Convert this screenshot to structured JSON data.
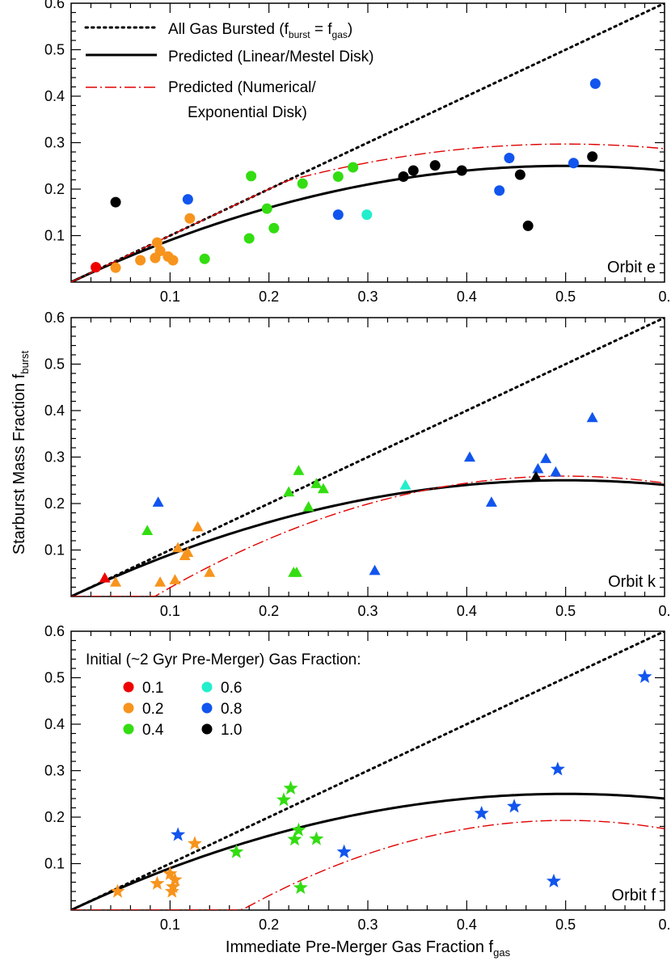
{
  "figure": {
    "ylabel": "Starburst Mass Fraction f",
    "ylabel_sub": "burst",
    "xlabel": "Immediate Pre-Merger Gas Fraction f",
    "xlabel_sub": "gas"
  },
  "legend_top": {
    "items": [
      {
        "label": "All Gas Bursted (f",
        "sub1": "burst",
        "mid": " = f",
        "sub2": "gas",
        "end": ")",
        "style": "dotted"
      },
      {
        "label": "Predicted (Linear/Mestel Disk)",
        "style": "solid"
      },
      {
        "label": "Predicted (Numerical/",
        "label2": "Exponential Disk)",
        "style": "dashdot"
      }
    ]
  },
  "legend_colors": {
    "title": "Initial (~2 Gyr Pre-Merger) Gas Fraction:",
    "items": [
      {
        "label": "0.1",
        "color": "#ee0000"
      },
      {
        "label": "0.2",
        "color": "#f7941d"
      },
      {
        "label": "0.4",
        "color": "#33dd11"
      },
      {
        "label": "0.6",
        "color": "#22eecc"
      },
      {
        "label": "0.8",
        "color": "#1155ee"
      },
      {
        "label": "1.0",
        "color": "#000000"
      }
    ]
  },
  "chart_data": [
    {
      "type": "scatter",
      "panel_label": "Orbit e",
      "marker": "circle",
      "xlim": [
        0,
        0.6
      ],
      "ylim": [
        0,
        0.6
      ],
      "xticks": [
        "0.1",
        "0.2",
        "0.3",
        "0.4",
        "0.5",
        "0."
      ],
      "yticks": [
        "0.1",
        "0.2",
        "0.3",
        "0.4",
        "0.5",
        "0.6"
      ],
      "numerical_peak": 0.297,
      "numerical_end": 0.287,
      "points": [
        {
          "x": 0.025,
          "y": 0.032,
          "g": "0.1"
        },
        {
          "x": 0.045,
          "y": 0.031,
          "g": "0.2"
        },
        {
          "x": 0.07,
          "y": 0.047,
          "g": "0.2"
        },
        {
          "x": 0.085,
          "y": 0.052,
          "g": "0.2"
        },
        {
          "x": 0.087,
          "y": 0.085,
          "g": "0.2"
        },
        {
          "x": 0.09,
          "y": 0.067,
          "g": "0.2"
        },
        {
          "x": 0.098,
          "y": 0.055,
          "g": "0.2"
        },
        {
          "x": 0.103,
          "y": 0.047,
          "g": "0.2"
        },
        {
          "x": 0.12,
          "y": 0.137,
          "g": "0.2"
        },
        {
          "x": 0.135,
          "y": 0.05,
          "g": "0.4"
        },
        {
          "x": 0.18,
          "y": 0.094,
          "g": "0.4"
        },
        {
          "x": 0.182,
          "y": 0.228,
          "g": "0.4"
        },
        {
          "x": 0.198,
          "y": 0.158,
          "g": "0.4"
        },
        {
          "x": 0.205,
          "y": 0.116,
          "g": "0.4"
        },
        {
          "x": 0.234,
          "y": 0.212,
          "g": "0.4"
        },
        {
          "x": 0.27,
          "y": 0.227,
          "g": "0.4"
        },
        {
          "x": 0.285,
          "y": 0.247,
          "g": "0.4"
        },
        {
          "x": 0.299,
          "y": 0.145,
          "g": "0.6"
        },
        {
          "x": 0.118,
          "y": 0.178,
          "g": "0.8"
        },
        {
          "x": 0.27,
          "y": 0.145,
          "g": "0.8"
        },
        {
          "x": 0.433,
          "y": 0.197,
          "g": "0.8"
        },
        {
          "x": 0.443,
          "y": 0.267,
          "g": "0.8"
        },
        {
          "x": 0.508,
          "y": 0.256,
          "g": "0.8"
        },
        {
          "x": 0.53,
          "y": 0.427,
          "g": "0.8"
        },
        {
          "x": 0.045,
          "y": 0.172,
          "g": "1.0"
        },
        {
          "x": 0.336,
          "y": 0.227,
          "g": "1.0"
        },
        {
          "x": 0.346,
          "y": 0.24,
          "g": "1.0"
        },
        {
          "x": 0.368,
          "y": 0.251,
          "g": "1.0"
        },
        {
          "x": 0.395,
          "y": 0.24,
          "g": "1.0"
        },
        {
          "x": 0.454,
          "y": 0.231,
          "g": "1.0"
        },
        {
          "x": 0.462,
          "y": 0.121,
          "g": "1.0"
        },
        {
          "x": 0.527,
          "y": 0.27,
          "g": "1.0"
        }
      ]
    },
    {
      "type": "scatter",
      "panel_label": "Orbit k",
      "marker": "triangle",
      "xlim": [
        0,
        0.6
      ],
      "ylim": [
        0,
        0.6
      ],
      "xticks": [
        "0.1",
        "0.2",
        "0.3",
        "0.4",
        "0.5",
        "0."
      ],
      "yticks": [
        "0.1",
        "0.2",
        "0.3",
        "0.4",
        "0.5",
        "0.6"
      ],
      "numerical_peak": 0.259,
      "numerical_end": 0.244,
      "points": [
        {
          "x": 0.034,
          "y": 0.04,
          "g": "0.1"
        },
        {
          "x": 0.045,
          "y": 0.031,
          "g": "0.2"
        },
        {
          "x": 0.09,
          "y": 0.031,
          "g": "0.2"
        },
        {
          "x": 0.105,
          "y": 0.036,
          "g": "0.2"
        },
        {
          "x": 0.108,
          "y": 0.105,
          "g": "0.2"
        },
        {
          "x": 0.115,
          "y": 0.088,
          "g": "0.2"
        },
        {
          "x": 0.118,
          "y": 0.095,
          "g": "0.2"
        },
        {
          "x": 0.128,
          "y": 0.15,
          "g": "0.2"
        },
        {
          "x": 0.14,
          "y": 0.052,
          "g": "0.2"
        },
        {
          "x": 0.077,
          "y": 0.142,
          "g": "0.4"
        },
        {
          "x": 0.22,
          "y": 0.225,
          "g": "0.4"
        },
        {
          "x": 0.225,
          "y": 0.052,
          "g": "0.4"
        },
        {
          "x": 0.228,
          "y": 0.052,
          "g": "0.4"
        },
        {
          "x": 0.23,
          "y": 0.271,
          "g": "0.4"
        },
        {
          "x": 0.24,
          "y": 0.193,
          "g": "0.4"
        },
        {
          "x": 0.248,
          "y": 0.243,
          "g": "0.4"
        },
        {
          "x": 0.255,
          "y": 0.232,
          "g": "0.4"
        },
        {
          "x": 0.338,
          "y": 0.24,
          "g": "0.6"
        },
        {
          "x": 0.088,
          "y": 0.203,
          "g": "0.8"
        },
        {
          "x": 0.307,
          "y": 0.056,
          "g": "0.8"
        },
        {
          "x": 0.403,
          "y": 0.3,
          "g": "0.8"
        },
        {
          "x": 0.425,
          "y": 0.203,
          "g": "0.8"
        },
        {
          "x": 0.472,
          "y": 0.275,
          "g": "0.8"
        },
        {
          "x": 0.48,
          "y": 0.297,
          "g": "0.8"
        },
        {
          "x": 0.49,
          "y": 0.268,
          "g": "0.8"
        },
        {
          "x": 0.527,
          "y": 0.385,
          "g": "0.8"
        },
        {
          "x": 0.47,
          "y": 0.258,
          "g": "1.0"
        }
      ]
    },
    {
      "type": "scatter",
      "panel_label": "Orbit f",
      "marker": "star",
      "xlim": [
        0,
        0.6
      ],
      "ylim": [
        0,
        0.6
      ],
      "xticks": [
        "0.1",
        "0.2",
        "0.3",
        "0.4",
        "0.5",
        "0."
      ],
      "yticks": [
        "0.1",
        "0.2",
        "0.3",
        "0.4",
        "0.5",
        "0.6"
      ],
      "numerical_peak": 0.193,
      "numerical_end": 0.175,
      "points": [
        {
          "x": 0.047,
          "y": 0.04,
          "g": "0.2"
        },
        {
          "x": 0.087,
          "y": 0.057,
          "g": "0.2"
        },
        {
          "x": 0.1,
          "y": 0.078,
          "g": "0.2"
        },
        {
          "x": 0.102,
          "y": 0.04,
          "g": "0.2"
        },
        {
          "x": 0.103,
          "y": 0.05,
          "g": "0.2"
        },
        {
          "x": 0.105,
          "y": 0.065,
          "g": "0.2"
        },
        {
          "x": 0.125,
          "y": 0.143,
          "g": "0.2"
        },
        {
          "x": 0.167,
          "y": 0.125,
          "g": "0.4"
        },
        {
          "x": 0.215,
          "y": 0.237,
          "g": "0.4"
        },
        {
          "x": 0.222,
          "y": 0.262,
          "g": "0.4"
        },
        {
          "x": 0.226,
          "y": 0.152,
          "g": "0.4"
        },
        {
          "x": 0.23,
          "y": 0.172,
          "g": "0.4"
        },
        {
          "x": 0.232,
          "y": 0.048,
          "g": "0.4"
        },
        {
          "x": 0.248,
          "y": 0.153,
          "g": "0.4"
        },
        {
          "x": 0.108,
          "y": 0.162,
          "g": "0.8"
        },
        {
          "x": 0.276,
          "y": 0.125,
          "g": "0.8"
        },
        {
          "x": 0.415,
          "y": 0.208,
          "g": "0.8"
        },
        {
          "x": 0.448,
          "y": 0.223,
          "g": "0.8"
        },
        {
          "x": 0.488,
          "y": 0.062,
          "g": "0.8"
        },
        {
          "x": 0.492,
          "y": 0.303,
          "g": "0.8"
        },
        {
          "x": 0.58,
          "y": 0.502,
          "g": "0.8"
        }
      ]
    }
  ]
}
